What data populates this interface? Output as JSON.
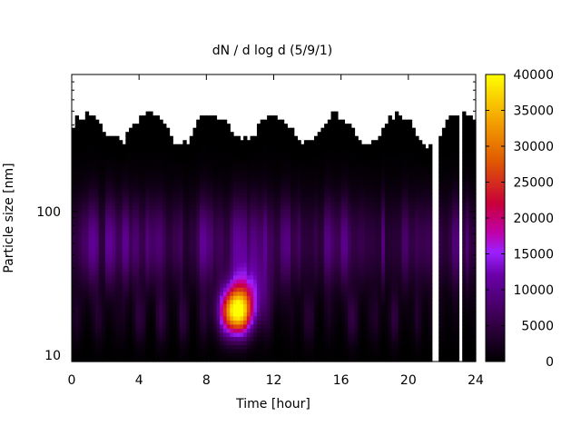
{
  "chart_data": {
    "type": "heatmap",
    "title": "dN / d log d (5/9/1)",
    "xlabel": "Time [hour]",
    "ylabel": "Particle size [nm]",
    "x_range": [
      0,
      24
    ],
    "x_ticks": [
      "0",
      "4",
      "8",
      "12",
      "16",
      "20",
      "24"
    ],
    "y_scale": "log",
    "y_range": [
      9,
      900
    ],
    "y_ticks": [
      "10",
      "100"
    ],
    "colorbar": {
      "range": [
        0,
        40000
      ],
      "ticks": [
        "0",
        "5000",
        "10000",
        "15000",
        "20000",
        "25000",
        "30000",
        "35000",
        "40000"
      ],
      "palette": [
        "#000000",
        "#6a00a8",
        "#9c20ff",
        "#c8003a",
        "#e86a00",
        "#ffe100"
      ]
    },
    "features": {
      "nucleation_event_center": {
        "time_hour": 9.8,
        "size_nm": 20,
        "value": 38000
      },
      "background_mode_size_nm": 60,
      "background_mode_value": 8000,
      "data_gaps_hours": [
        [
          21.5,
          21.7
        ],
        [
          23.0,
          23.2
        ]
      ]
    }
  }
}
